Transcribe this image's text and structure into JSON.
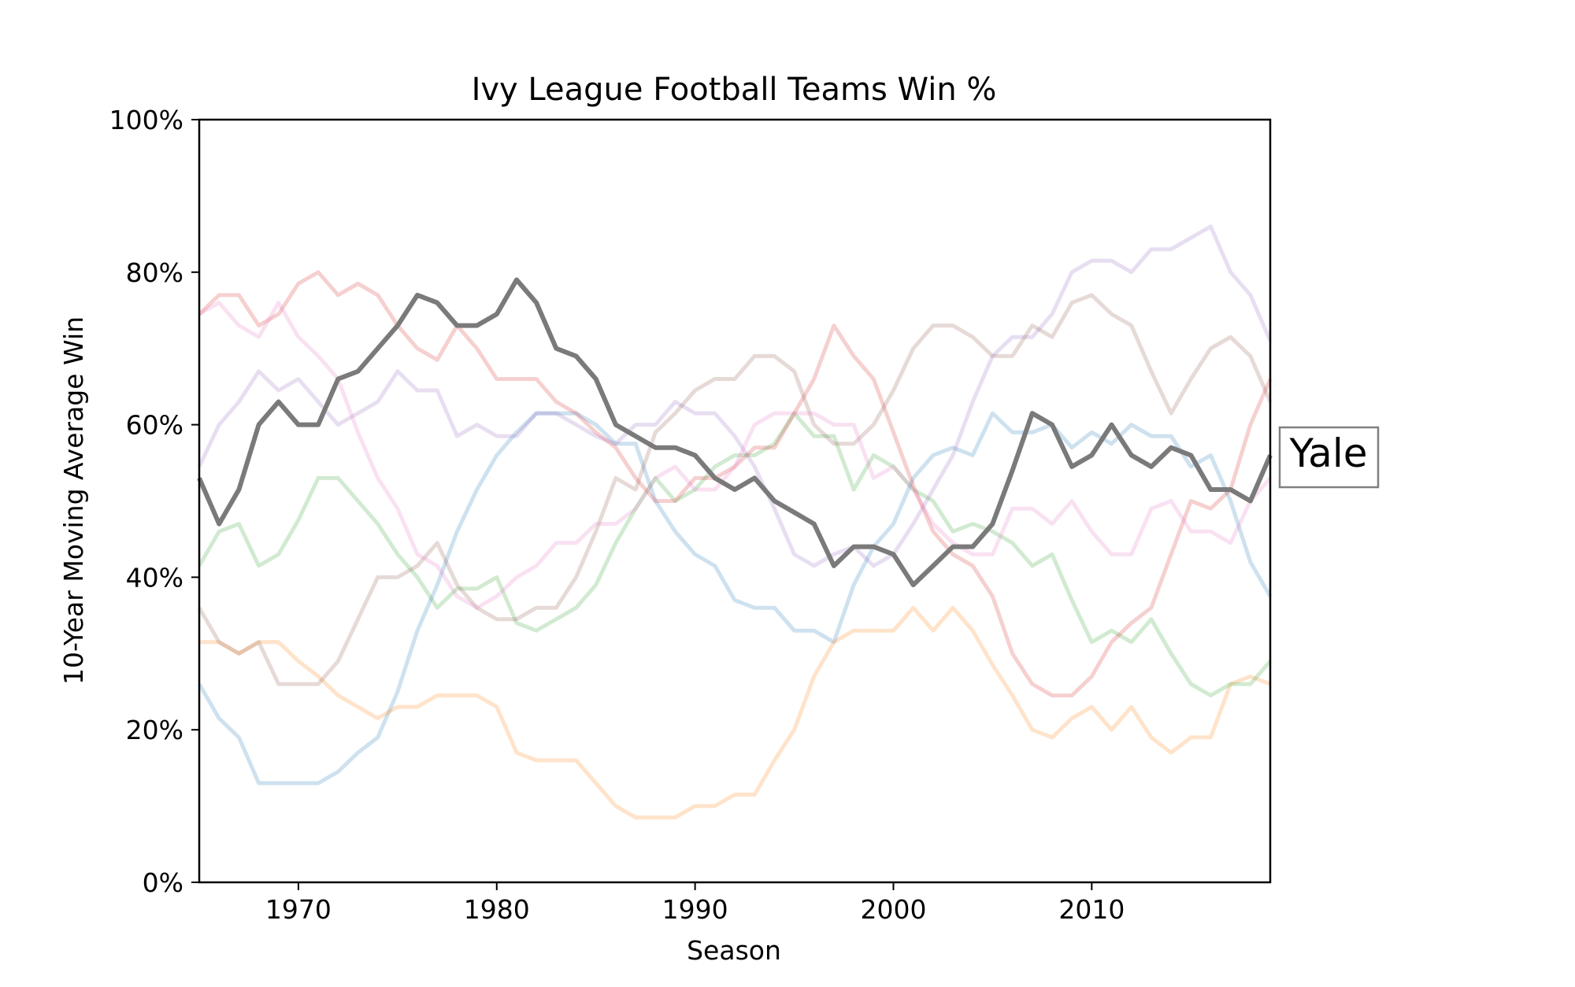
{
  "chart_data": {
    "type": "line",
    "title": "Ivy League Football Teams Win %",
    "xlabel": "Season",
    "ylabel": "10-Year Moving Average Win",
    "xlim": [
      1965,
      2019
    ],
    "ylim": [
      0,
      100
    ],
    "x_ticks": [
      1970,
      1980,
      1990,
      2000,
      2010
    ],
    "y_ticks": [
      0,
      20,
      40,
      60,
      80,
      100
    ],
    "y_tick_labels": [
      "0%",
      "20%",
      "40%",
      "60%",
      "80%",
      "100%"
    ],
    "highlight_label": "Yale",
    "highlight_series_index": 0,
    "series": [
      {
        "name": "Yale",
        "color": "#7a7a7a",
        "x": [
          1965,
          1966,
          1967,
          1968,
          1969,
          1970,
          1971,
          1972,
          1973,
          1974,
          1975,
          1976,
          1977,
          1978,
          1979,
          1980,
          1981,
          1982,
          1983,
          1984,
          1985,
          1986,
          1987,
          1988,
          1989,
          1990,
          1991,
          1992,
          1993,
          1994,
          1995,
          1996,
          1997,
          1998,
          1999,
          2000,
          2001,
          2002,
          2003,
          2004,
          2005,
          2006,
          2007,
          2008,
          2009,
          2010,
          2011,
          2012,
          2013,
          2014,
          2015,
          2016,
          2017,
          2018,
          2019
        ],
        "values": [
          53,
          47,
          51.5,
          60,
          63,
          60,
          60,
          66,
          67,
          70,
          73,
          77,
          76,
          73,
          73,
          74.5,
          79,
          76,
          70,
          69,
          66,
          60,
          58.5,
          57,
          57,
          56,
          53,
          51.5,
          53,
          50,
          48.5,
          47,
          41.5,
          44,
          44,
          43,
          39,
          41.5,
          44,
          44,
          47,
          54,
          61.5,
          60,
          54.5,
          56,
          60,
          56,
          54.5,
          57,
          56,
          51.5,
          51.5,
          50,
          56
        ]
      },
      {
        "color": "#1f77b4",
        "x": [
          1965,
          1966,
          1967,
          1968,
          1969,
          1970,
          1971,
          1972,
          1973,
          1974,
          1975,
          1976,
          1977,
          1978,
          1979,
          1980,
          1981,
          1982,
          1983,
          1984,
          1985,
          1986,
          1987,
          1988,
          1989,
          1990,
          1991,
          1992,
          1993,
          1994,
          1995,
          1996,
          1997,
          1998,
          1999,
          2000,
          2001,
          2002,
          2003,
          2004,
          2005,
          2006,
          2007,
          2008,
          2009,
          2010,
          2011,
          2012,
          2013,
          2014,
          2015,
          2016,
          2017,
          2018,
          2019
        ],
        "values": [
          26,
          21.5,
          19,
          13,
          13,
          13,
          13,
          14.5,
          17,
          19,
          25,
          33,
          39,
          46,
          51.5,
          56,
          59,
          61.5,
          61.5,
          61.5,
          60,
          57.5,
          57.5,
          50,
          46,
          43,
          41.5,
          37,
          36,
          36,
          33,
          33,
          31.5,
          39,
          44,
          47,
          53,
          56,
          57,
          56,
          61.5,
          59,
          59,
          60,
          57,
          59,
          57.5,
          60,
          58.5,
          58.5,
          54.5,
          56,
          50,
          42,
          37.5
        ]
      },
      {
        "color": "#ff7f0e",
        "x": [
          1965,
          1966,
          1967,
          1968,
          1969,
          1970,
          1971,
          1972,
          1973,
          1974,
          1975,
          1976,
          1977,
          1978,
          1979,
          1980,
          1981,
          1982,
          1983,
          1984,
          1985,
          1986,
          1987,
          1988,
          1989,
          1990,
          1991,
          1992,
          1993,
          1994,
          1995,
          1996,
          1997,
          1998,
          1999,
          2000,
          2001,
          2002,
          2003,
          2004,
          2005,
          2006,
          2007,
          2008,
          2009,
          2010,
          2011,
          2012,
          2013,
          2014,
          2015,
          2016,
          2017,
          2018,
          2019
        ],
        "values": [
          31.5,
          31.5,
          30,
          31.5,
          31.5,
          29,
          27,
          24.5,
          23,
          21.5,
          23,
          23,
          24.5,
          24.5,
          24.5,
          23,
          17,
          16,
          16,
          16,
          13,
          10,
          8.5,
          8.5,
          8.5,
          10,
          10,
          11.5,
          11.5,
          16,
          20,
          27,
          31.5,
          33,
          33,
          33,
          36,
          33,
          36,
          33,
          28.5,
          24.5,
          20,
          19,
          21.5,
          23,
          20,
          23,
          19,
          17,
          19,
          19,
          26,
          27,
          26
        ]
      },
      {
        "color": "#2ca02c",
        "x": [
          1965,
          1966,
          1967,
          1968,
          1969,
          1970,
          1971,
          1972,
          1973,
          1974,
          1975,
          1976,
          1977,
          1978,
          1979,
          1980,
          1981,
          1982,
          1983,
          1984,
          1985,
          1986,
          1987,
          1988,
          1989,
          1990,
          1991,
          1992,
          1993,
          1994,
          1995,
          1996,
          1997,
          1998,
          1999,
          2000,
          2001,
          2002,
          2003,
          2004,
          2005,
          2006,
          2007,
          2008,
          2009,
          2010,
          2011,
          2012,
          2013,
          2014,
          2015,
          2016,
          2017,
          2018,
          2019
        ],
        "values": [
          41.5,
          46,
          47,
          41.5,
          43,
          47.5,
          53,
          53,
          50,
          47,
          43,
          40,
          36,
          38.5,
          38.5,
          40,
          34,
          33,
          34.5,
          36,
          39,
          44.5,
          49,
          53,
          50,
          51.5,
          54.5,
          56,
          56,
          57.5,
          61.5,
          58.5,
          58.5,
          51.5,
          56,
          54.5,
          51.5,
          50,
          46,
          47,
          46,
          44.5,
          41.5,
          43,
          37,
          31.5,
          33,
          31.5,
          34.5,
          30,
          26,
          24.5,
          26,
          26,
          29
        ]
      },
      {
        "color": "#d62728",
        "x": [
          1965,
          1966,
          1967,
          1968,
          1969,
          1970,
          1971,
          1972,
          1973,
          1974,
          1975,
          1976,
          1977,
          1978,
          1979,
          1980,
          1981,
          1982,
          1983,
          1984,
          1985,
          1986,
          1987,
          1988,
          1989,
          1990,
          1991,
          1992,
          1993,
          1994,
          1995,
          1996,
          1997,
          1998,
          1999,
          2000,
          2001,
          2002,
          2003,
          2004,
          2005,
          2006,
          2007,
          2008,
          2009,
          2010,
          2011,
          2012,
          2013,
          2014,
          2015,
          2016,
          2017,
          2018,
          2019
        ],
        "values": [
          74.5,
          77,
          77,
          73,
          74.5,
          78.5,
          80,
          77,
          78.5,
          77,
          73,
          70,
          68.5,
          73,
          70,
          66,
          66,
          66,
          63,
          61.5,
          59,
          57,
          53,
          50,
          50,
          53,
          53,
          54.5,
          57,
          57,
          61.5,
          66,
          73,
          69,
          66,
          59,
          52,
          46,
          43,
          41.5,
          37.5,
          30,
          26,
          24.5,
          24.5,
          27,
          31.5,
          34,
          36,
          43,
          50,
          49,
          51.5,
          60,
          66
        ]
      },
      {
        "color": "#9467bd",
        "x": [
          1965,
          1966,
          1967,
          1968,
          1969,
          1970,
          1971,
          1972,
          1973,
          1974,
          1975,
          1976,
          1977,
          1978,
          1979,
          1980,
          1981,
          1982,
          1983,
          1984,
          1985,
          1986,
          1987,
          1988,
          1989,
          1990,
          1991,
          1992,
          1993,
          1994,
          1995,
          1996,
          1997,
          1998,
          1999,
          2000,
          2001,
          2002,
          2003,
          2004,
          2005,
          2006,
          2007,
          2008,
          2009,
          2010,
          2011,
          2012,
          2013,
          2014,
          2015,
          2016,
          2017,
          2018,
          2019
        ],
        "values": [
          54.5,
          60,
          63,
          67,
          64.5,
          66,
          63,
          60,
          61.5,
          63,
          67,
          64.5,
          64.5,
          58.5,
          60,
          58.5,
          58.5,
          61.5,
          61.5,
          60,
          58.5,
          57.5,
          60,
          60,
          63,
          61.5,
          61.5,
          58.5,
          54.5,
          49,
          43,
          41.5,
          43,
          44,
          41.5,
          43,
          47,
          51.5,
          56,
          63,
          69,
          71.5,
          71.5,
          74.5,
          80,
          81.5,
          81.5,
          80,
          83,
          83,
          84.5,
          86,
          80,
          77,
          71
        ]
      },
      {
        "color": "#8c564b",
        "x": [
          1965,
          1966,
          1967,
          1968,
          1969,
          1970,
          1971,
          1972,
          1973,
          1974,
          1975,
          1976,
          1977,
          1978,
          1979,
          1980,
          1981,
          1982,
          1983,
          1984,
          1985,
          1986,
          1987,
          1988,
          1989,
          1990,
          1991,
          1992,
          1993,
          1994,
          1995,
          1996,
          1997,
          1998,
          1999,
          2000,
          2001,
          2002,
          2003,
          2004,
          2005,
          2006,
          2007,
          2008,
          2009,
          2010,
          2011,
          2012,
          2013,
          2014,
          2015,
          2016,
          2017,
          2018,
          2019
        ],
        "values": [
          36,
          31.5,
          30,
          31.5,
          26,
          26,
          26,
          29,
          34.5,
          40,
          40,
          41.5,
          44.5,
          39,
          36,
          34.5,
          34.5,
          36,
          36,
          40,
          46,
          53,
          51.5,
          59,
          61.5,
          64.5,
          66,
          66,
          69,
          69,
          67,
          60,
          57.5,
          57.5,
          60,
          64.5,
          70,
          73,
          73,
          71.5,
          69,
          69,
          73,
          71.5,
          76,
          77,
          74.5,
          73,
          67,
          61.5,
          66,
          70,
          71.5,
          69,
          63
        ]
      },
      {
        "color": "#e377c2",
        "x": [
          1965,
          1966,
          1967,
          1968,
          1969,
          1970,
          1971,
          1972,
          1973,
          1974,
          1975,
          1976,
          1977,
          1978,
          1979,
          1980,
          1981,
          1982,
          1983,
          1984,
          1985,
          1986,
          1987,
          1988,
          1989,
          1990,
          1991,
          1992,
          1993,
          1994,
          1995,
          1996,
          1997,
          1998,
          1999,
          2000,
          2001,
          2002,
          2003,
          2004,
          2005,
          2006,
          2007,
          2008,
          2009,
          2010,
          2011,
          2012,
          2013,
          2014,
          2015,
          2016,
          2017,
          2018,
          2019
        ],
        "values": [
          74.5,
          76,
          73,
          71.5,
          76,
          71.5,
          69,
          66,
          59,
          53,
          49,
          43,
          41.5,
          37.5,
          36,
          37.5,
          40,
          41.5,
          44.5,
          44.5,
          47,
          47,
          49,
          53,
          54.5,
          51.5,
          51.5,
          54.5,
          60,
          61.5,
          61.5,
          61.5,
          60,
          60,
          53,
          54.5,
          51.5,
          47,
          44.5,
          43,
          43,
          49,
          49,
          47,
          50,
          46,
          43,
          43,
          49,
          50,
          46,
          46,
          44.5,
          50,
          53
        ]
      }
    ]
  }
}
